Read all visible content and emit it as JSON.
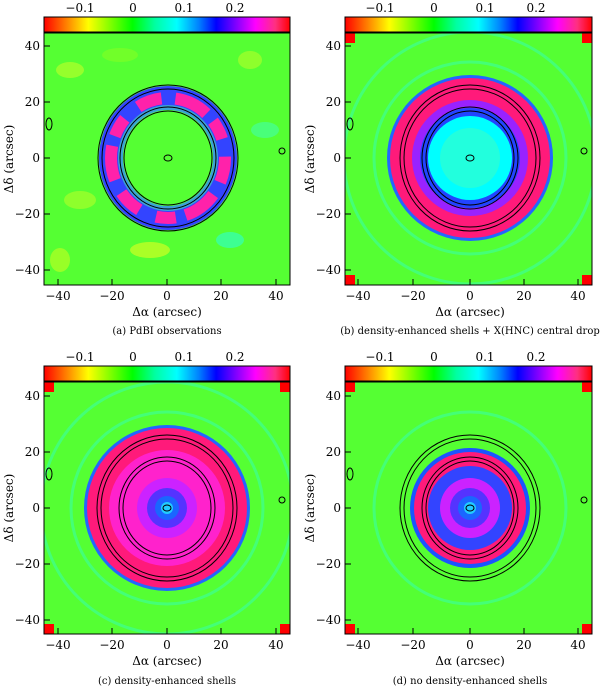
{
  "colorbar": {
    "labels": [
      "−0.1",
      "0",
      "0.1",
      "0.2"
    ],
    "values": [
      -0.1,
      0,
      0.1,
      0.2
    ],
    "range": [
      -0.16,
      0.26
    ],
    "colors": [
      "#ff0000",
      "#ff7f00",
      "#ffff00",
      "#7fff00",
      "#00ff00",
      "#00ff9f",
      "#00ffff",
      "#0080ff",
      "#0000ff",
      "#8000ff",
      "#ff00ff",
      "#ff3080",
      "#ff0000"
    ]
  },
  "axes": {
    "xlabel": "Δα (arcsec)",
    "ylabel": "Δδ (arcsec)",
    "xticks": [
      "−40",
      "−20",
      "0",
      "20",
      "40"
    ],
    "yticks": [
      "40",
      "20",
      "0",
      "−20",
      "−40"
    ],
    "range": [
      -45,
      45
    ]
  },
  "panels": [
    {
      "caption": "(a)  PdBI observations"
    },
    {
      "caption": "(b)  density-enhanced shells + X(HNC) central drop"
    },
    {
      "caption": "(c)  density-enhanced shells"
    },
    {
      "caption": "(d)  no density-enhanced shells"
    }
  ],
  "chart_data": [
    {
      "type": "heatmap",
      "caption": "(a)  PdBI observations",
      "xlabel": "Δα (arcsec)",
      "ylabel": "Δδ (arcsec)",
      "xlim": [
        -45,
        45
      ],
      "ylim": [
        -45,
        45
      ]
    },
    {
      "type": "heatmap",
      "caption": "(b)  density-enhanced shells + X(HNC) central drop",
      "xlabel": "Δα (arcsec)",
      "ylabel": "Δδ (arcsec)",
      "xlim": [
        -45,
        45
      ],
      "ylim": [
        -45,
        45
      ]
    },
    {
      "type": "heatmap",
      "caption": "(c)  density-enhanced shells",
      "xlabel": "Δα (arcsec)",
      "ylabel": "Δδ (arcsec)",
      "xlim": [
        -45,
        45
      ],
      "ylim": [
        -45,
        45
      ]
    },
    {
      "type": "heatmap",
      "caption": "(d)  no density-enhanced shells",
      "xlabel": "Δα (arcsec)",
      "ylabel": "Δδ (arcsec)",
      "xlim": [
        -45,
        45
      ],
      "ylim": [
        -45,
        45
      ]
    }
  ]
}
